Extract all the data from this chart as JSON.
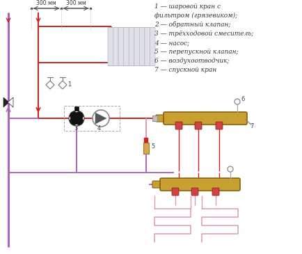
{
  "background_color": "#ffffff",
  "legend_items": [
    "1 — шаровой кран с",
    "фильтром (грязевиком);",
    "2 — обратный клапан;",
    "3 — трёхходовой смеситель;",
    "4 — насос;",
    "5 — перепускной клапан;",
    "6 — воздухоотводчик;",
    "7 — спускной кран"
  ],
  "pipe_red": "#cc2222",
  "pipe_purple": "#aa66bb",
  "pipe_pink": "#dd99bb",
  "manifold_color": "#c8a030",
  "dashed_color": "#aaaaaa",
  "dim_text": "300 мм",
  "figsize": [
    4.34,
    3.65
  ],
  "dpi": 100
}
